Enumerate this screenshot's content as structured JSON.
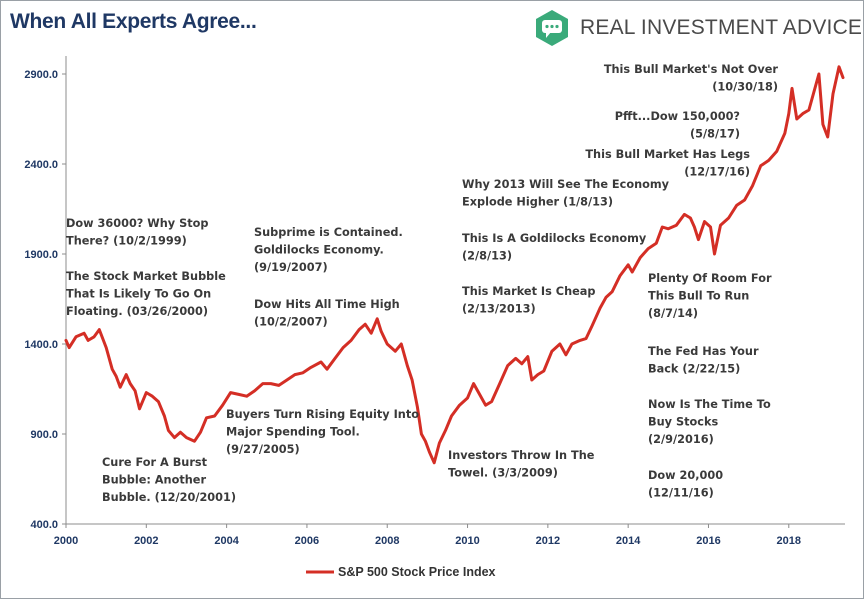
{
  "header": {
    "title": "When All Experts Agree...",
    "brand": "REAL INVESTMENT ADVICE",
    "brand_color": "#3aaa7a",
    "logo_icon": "speech-bubble-icon"
  },
  "chart_data": {
    "type": "line",
    "title": "When All Experts Agree...",
    "xlabel": "",
    "ylabel": "",
    "xlim": [
      2000,
      2019.4
    ],
    "ylim": [
      400,
      3000
    ],
    "grid": false,
    "legend_position": "bottom-center",
    "x_ticks": [
      "2000",
      "2002",
      "2004",
      "2006",
      "2008",
      "2010",
      "2012",
      "2014",
      "2016",
      "2018"
    ],
    "y_ticks": [
      "400.0",
      "900.0",
      "1400.0",
      "1900.0",
      "2400.0",
      "2900.0"
    ],
    "series": [
      {
        "name": "S&P 500 Stock Price Index",
        "color": "#d42e25",
        "x": [
          2000.0,
          2000.08,
          2000.25,
          2000.45,
          2000.55,
          2000.7,
          2000.83,
          2001.0,
          2001.15,
          2001.25,
          2001.35,
          2001.5,
          2001.6,
          2001.72,
          2001.83,
          2002.0,
          2002.15,
          2002.3,
          2002.45,
          2002.55,
          2002.7,
          2002.85,
          2003.0,
          2003.2,
          2003.35,
          2003.5,
          2003.7,
          2003.9,
          2004.1,
          2004.3,
          2004.5,
          2004.7,
          2004.9,
          2005.1,
          2005.3,
          2005.5,
          2005.7,
          2005.9,
          2006.1,
          2006.35,
          2006.5,
          2006.7,
          2006.9,
          2007.1,
          2007.3,
          2007.45,
          2007.6,
          2007.75,
          2007.85,
          2008.0,
          2008.2,
          2008.35,
          2008.5,
          2008.62,
          2008.75,
          2008.85,
          2008.95,
          2009.05,
          2009.17,
          2009.3,
          2009.45,
          2009.6,
          2009.8,
          2010.0,
          2010.15,
          2010.3,
          2010.45,
          2010.6,
          2010.8,
          2011.0,
          2011.2,
          2011.35,
          2011.5,
          2011.6,
          2011.75,
          2011.9,
          2012.1,
          2012.3,
          2012.45,
          2012.6,
          2012.8,
          2012.95,
          2013.1,
          2013.3,
          2013.45,
          2013.6,
          2013.8,
          2014.0,
          2014.1,
          2014.3,
          2014.5,
          2014.7,
          2014.85,
          2015.0,
          2015.2,
          2015.4,
          2015.55,
          2015.65,
          2015.75,
          2015.9,
          2016.05,
          2016.15,
          2016.3,
          2016.5,
          2016.7,
          2016.9,
          2017.1,
          2017.3,
          2017.5,
          2017.7,
          2017.9,
          2018.0,
          2018.08,
          2018.2,
          2018.35,
          2018.5,
          2018.65,
          2018.75,
          2018.85,
          2018.97,
          2019.1,
          2019.25,
          2019.35
        ],
        "values": [
          1420,
          1380,
          1440,
          1460,
          1420,
          1440,
          1480,
          1380,
          1260,
          1220,
          1160,
          1230,
          1180,
          1140,
          1040,
          1130,
          1110,
          1080,
          1000,
          920,
          880,
          910,
          880,
          860,
          910,
          990,
          1000,
          1060,
          1130,
          1120,
          1110,
          1140,
          1180,
          1180,
          1170,
          1200,
          1230,
          1240,
          1270,
          1300,
          1260,
          1320,
          1380,
          1420,
          1480,
          1510,
          1460,
          1540,
          1470,
          1400,
          1360,
          1400,
          1280,
          1200,
          1050,
          900,
          860,
          800,
          740,
          850,
          920,
          1000,
          1060,
          1100,
          1180,
          1120,
          1060,
          1080,
          1180,
          1280,
          1320,
          1290,
          1330,
          1200,
          1230,
          1250,
          1360,
          1400,
          1340,
          1400,
          1420,
          1430,
          1500,
          1600,
          1660,
          1690,
          1780,
          1840,
          1800,
          1880,
          1930,
          1960,
          2050,
          2040,
          2060,
          2120,
          2100,
          2050,
          1980,
          2080,
          2050,
          1900,
          2060,
          2100,
          2170,
          2200,
          2280,
          2390,
          2420,
          2470,
          2570,
          2680,
          2820,
          2650,
          2680,
          2700,
          2820,
          2900,
          2620,
          2550,
          2790,
          2940,
          2880
        ]
      }
    ],
    "annotations": [
      {
        "lines": [
          "Dow 36000? Why Stop",
          "There?  (10/2/1999)"
        ]
      },
      {
        "lines": [
          "The Stock Market Bubble",
          "That Is Likely To Go On",
          "Floating. (03/26/2000)"
        ]
      },
      {
        "lines": [
          "Cure For A Burst",
          "Bubble: Another",
          "Bubble.  (12/20/2001)"
        ]
      },
      {
        "lines": [
          "Buyers Turn Rising Equity Into",
          "Major Spending Tool.",
          "(9/27/2005)"
        ]
      },
      {
        "lines": [
          "Subprime is Contained.",
          "Goldilocks Economy.",
          "(9/19/2007)"
        ]
      },
      {
        "lines": [
          "Dow Hits All Time High",
          "(10/2/2007)"
        ]
      },
      {
        "lines": [
          "Investors Throw In The",
          "Towel.  (3/3/2009)"
        ]
      },
      {
        "lines": [
          "Why 2013 Will See The Economy",
          "Explode Higher (1/8/13)"
        ]
      },
      {
        "lines": [
          "This Is A Goldilocks Economy",
          "(2/8/13)"
        ]
      },
      {
        "lines": [
          "This Market Is Cheap",
          "(2/13/2013)"
        ]
      },
      {
        "lines": [
          "This Bull Market's Not Over",
          "(10/30/18)"
        ]
      },
      {
        "lines": [
          "Pfft...Dow 150,000?",
          "(5/8/17)"
        ]
      },
      {
        "lines": [
          "This Bull Market Has Legs",
          "(12/17/16)"
        ]
      },
      {
        "lines": [
          "Plenty Of Room For",
          "This Bull To Run",
          "(8/7/14)"
        ]
      },
      {
        "lines": [
          "The Fed Has Your",
          "Back (2/22/15)"
        ]
      },
      {
        "lines": [
          "Now Is The Time To",
          "Buy Stocks",
          "(2/9/2016)"
        ]
      },
      {
        "lines": [
          "Dow 20,000",
          "(12/11/16)"
        ]
      }
    ]
  }
}
